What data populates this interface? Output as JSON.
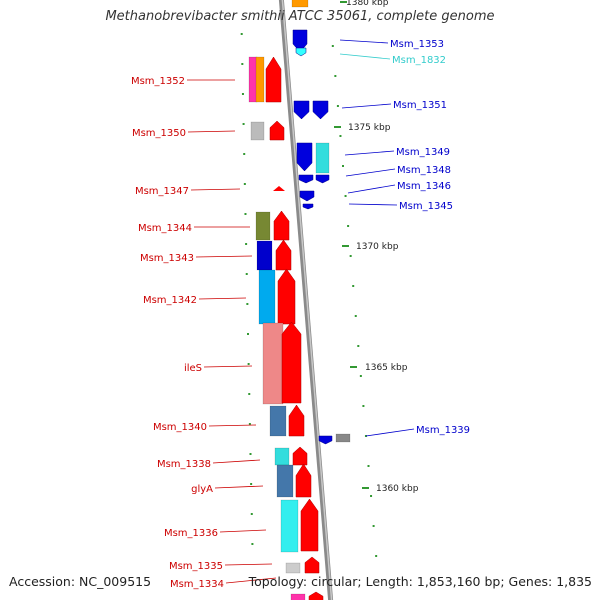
{
  "title": "Methanobrevibacter smithii ATCC 35061, complete genome",
  "footer": {
    "accession": "Accession: NC_009515",
    "topology": "Topology: circular; Length: 1,853,160 bp; Genes: 1,835"
  },
  "kbp_ticks": [
    {
      "label": "1380 kbp",
      "partial": true
    },
    {
      "label": "1375 kbp"
    },
    {
      "label": "1370 kbp"
    },
    {
      "label": "1365 kbp"
    },
    {
      "label": "1360 kbp"
    }
  ],
  "gene_labels_left": [
    "Msm_1352",
    "Msm_1350",
    "Msm_1347",
    "Msm_1344",
    "Msm_1343",
    "Msm_1342",
    "ileS",
    "Msm_1340",
    "Msm_1338",
    "glyA",
    "Msm_1336",
    "Msm_1335",
    "Msm_1334"
  ],
  "gene_labels_right": [
    "Msm_1353",
    "Msm_1832",
    "Msm_1351",
    "Msm_1349",
    "Msm_1348",
    "Msm_1346",
    "Msm_1345",
    "Msm_1339"
  ],
  "colors": {
    "forward": "#ff0000",
    "reverse": "#0000dd",
    "label_left": "#cc0000",
    "label_right": "#0000cc",
    "label_rna": "#33cccc",
    "backbone": "#999999",
    "tick": "#339933"
  }
}
